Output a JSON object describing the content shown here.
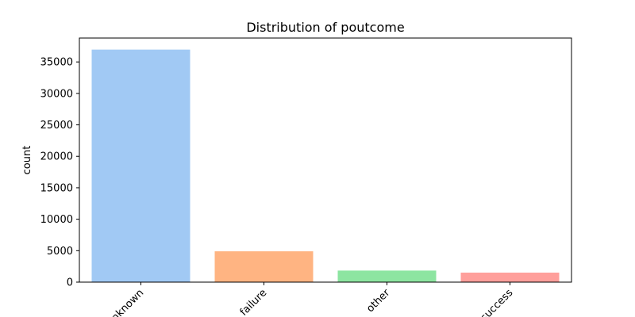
{
  "chart_data": {
    "type": "bar",
    "title": "Distribution of poutcome",
    "xlabel": "",
    "ylabel": "count",
    "categories": [
      "unknown",
      "failure",
      "other",
      "success"
    ],
    "values": [
      36959,
      4901,
      1840,
      1511
    ],
    "ylim": [
      0,
      38800
    ],
    "yticks": [
      0,
      5000,
      10000,
      15000,
      20000,
      25000,
      30000,
      35000
    ],
    "colors": [
      "#a1c9f4",
      "#ffb482",
      "#8de5a1",
      "#ff9f9b"
    ],
    "grid": false,
    "legend": "none"
  }
}
